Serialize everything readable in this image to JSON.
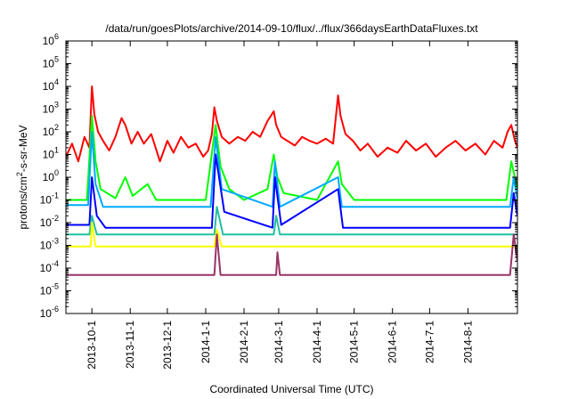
{
  "chart_data": {
    "type": "line",
    "title": "/data/run/goesPlots/archive/2014-09-10/flux/../flux/366daysEarthDataFluxes.txt",
    "xlabel": "Coordinated Universal Time (UTC)",
    "ylabel": "protons/cm2-s-sr-MeV",
    "ylabel_parts": {
      "base": "protons/cm",
      "sup": "2",
      "rest": "-s-sr-MeV"
    },
    "yscale": "log",
    "ylim": [
      1e-06,
      1000000.0
    ],
    "xlim": [
      "2013-09-10",
      "2014-09-10"
    ],
    "y_ticks": [
      {
        "exp": -6,
        "label_base": "10",
        "label_sup": "-6"
      },
      {
        "exp": -5,
        "label_base": "10",
        "label_sup": "-5"
      },
      {
        "exp": -4,
        "label_base": "10",
        "label_sup": "-4"
      },
      {
        "exp": -3,
        "label_base": "10",
        "label_sup": "-3"
      },
      {
        "exp": -2,
        "label_base": "10",
        "label_sup": "-2"
      },
      {
        "exp": -1,
        "label_base": "10",
        "label_sup": "-1"
      },
      {
        "exp": 0,
        "label_base": "10",
        "label_sup": "0"
      },
      {
        "exp": 1,
        "label_base": "10",
        "label_sup": "1"
      },
      {
        "exp": 2,
        "label_base": "10",
        "label_sup": "2"
      },
      {
        "exp": 3,
        "label_base": "10",
        "label_sup": "3"
      },
      {
        "exp": 4,
        "label_base": "10",
        "label_sup": "4"
      },
      {
        "exp": 5,
        "label_base": "10",
        "label_sup": "5"
      },
      {
        "exp": 6,
        "label_base": "10",
        "label_sup": "6"
      }
    ],
    "x_ticks": [
      {
        "date": "2013-10-01",
        "label": "2013-10-1"
      },
      {
        "date": "2013-11-01",
        "label": "2013-11-1"
      },
      {
        "date": "2013-12-01",
        "label": "2013-12-1"
      },
      {
        "date": "2014-01-01",
        "label": "2014-1-1"
      },
      {
        "date": "2014-02-01",
        "label": "2014-2-1"
      },
      {
        "date": "2014-03-01",
        "label": "2014-3-1"
      },
      {
        "date": "2014-04-01",
        "label": "2014-4-1"
      },
      {
        "date": "2014-05-01",
        "label": "2014-5-1"
      },
      {
        "date": "2014-06-01",
        "label": "2014-6-1"
      },
      {
        "date": "2014-07-01",
        "label": "2014-7-1"
      },
      {
        "date": "2014-08-01",
        "label": "2014-8-1"
      }
    ],
    "grid": false,
    "legend": "none",
    "series": [
      {
        "color": "#ff0000",
        "points": [
          [
            "2013-09-10",
            8
          ],
          [
            "2013-09-15",
            30
          ],
          [
            "2013-09-20",
            5
          ],
          [
            "2013-09-25",
            60
          ],
          [
            "2013-09-29",
            20
          ],
          [
            "2013-10-01",
            10000
          ],
          [
            "2013-10-03",
            600
          ],
          [
            "2013-10-06",
            100
          ],
          [
            "2013-10-10",
            40
          ],
          [
            "2013-10-15",
            15
          ],
          [
            "2013-10-20",
            60
          ],
          [
            "2013-10-25",
            400
          ],
          [
            "2013-10-28",
            200
          ],
          [
            "2013-11-02",
            30
          ],
          [
            "2013-11-07",
            100
          ],
          [
            "2013-11-12",
            30
          ],
          [
            "2013-11-18",
            80
          ],
          [
            "2013-11-25",
            5
          ],
          [
            "2013-12-01",
            40
          ],
          [
            "2013-12-06",
            12
          ],
          [
            "2013-12-12",
            60
          ],
          [
            "2013-12-18",
            20
          ],
          [
            "2013-12-24",
            30
          ],
          [
            "2013-12-30",
            8
          ],
          [
            "2014-01-03",
            15
          ],
          [
            "2014-01-06",
            80
          ],
          [
            "2014-01-08",
            1200
          ],
          [
            "2014-01-10",
            300
          ],
          [
            "2014-01-14",
            60
          ],
          [
            "2014-01-20",
            30
          ],
          [
            "2014-01-27",
            60
          ],
          [
            "2014-02-02",
            40
          ],
          [
            "2014-02-08",
            100
          ],
          [
            "2014-02-14",
            60
          ],
          [
            "2014-02-20",
            300
          ],
          [
            "2014-02-25",
            800
          ],
          [
            "2014-02-27",
            200
          ],
          [
            "2014-03-03",
            60
          ],
          [
            "2014-03-08",
            40
          ],
          [
            "2014-03-14",
            25
          ],
          [
            "2014-03-20",
            60
          ],
          [
            "2014-03-26",
            40
          ],
          [
            "2014-04-01",
            30
          ],
          [
            "2014-04-08",
            50
          ],
          [
            "2014-04-14",
            30
          ],
          [
            "2014-04-18",
            4000
          ],
          [
            "2014-04-20",
            500
          ],
          [
            "2014-04-24",
            80
          ],
          [
            "2014-04-30",
            40
          ],
          [
            "2014-05-06",
            15
          ],
          [
            "2014-05-12",
            30
          ],
          [
            "2014-05-20",
            8
          ],
          [
            "2014-05-28",
            20
          ],
          [
            "2014-06-05",
            12
          ],
          [
            "2014-06-12",
            40
          ],
          [
            "2014-06-20",
            15
          ],
          [
            "2014-06-28",
            30
          ],
          [
            "2014-07-06",
            8
          ],
          [
            "2014-07-14",
            20
          ],
          [
            "2014-07-22",
            40
          ],
          [
            "2014-07-30",
            15
          ],
          [
            "2014-08-07",
            30
          ],
          [
            "2014-08-15",
            10
          ],
          [
            "2014-08-22",
            40
          ],
          [
            "2014-08-29",
            20
          ],
          [
            "2014-09-02",
            100
          ],
          [
            "2014-09-05",
            200
          ],
          [
            "2014-09-08",
            40
          ],
          [
            "2014-09-10",
            20
          ]
        ]
      },
      {
        "color": "#00ff00",
        "points": [
          [
            "2013-09-10",
            0.1
          ],
          [
            "2013-09-27",
            0.1
          ],
          [
            "2013-10-01",
            500
          ],
          [
            "2013-10-04",
            5
          ],
          [
            "2013-10-08",
            0.3
          ],
          [
            "2013-10-20",
            0.12
          ],
          [
            "2013-10-28",
            1
          ],
          [
            "2013-11-03",
            0.15
          ],
          [
            "2013-11-15",
            0.5
          ],
          [
            "2013-11-22",
            0.1
          ],
          [
            "2014-01-01",
            0.1
          ],
          [
            "2014-01-07",
            30
          ],
          [
            "2014-01-09",
            200
          ],
          [
            "2014-01-13",
            3
          ],
          [
            "2014-01-20",
            0.3
          ],
          [
            "2014-02-01",
            0.1
          ],
          [
            "2014-02-20",
            0.3
          ],
          [
            "2014-02-25",
            10
          ],
          [
            "2014-02-28",
            1
          ],
          [
            "2014-03-05",
            0.2
          ],
          [
            "2014-04-01",
            0.1
          ],
          [
            "2014-04-18",
            5
          ],
          [
            "2014-04-21",
            0.5
          ],
          [
            "2014-05-01",
            0.1
          ],
          [
            "2014-09-01",
            0.1
          ],
          [
            "2014-09-05",
            5
          ],
          [
            "2014-09-10",
            0.3
          ]
        ]
      },
      {
        "color": "#00aaff",
        "points": [
          [
            "2013-09-10",
            0.06
          ],
          [
            "2013-09-28",
            0.06
          ],
          [
            "2013-10-01",
            100
          ],
          [
            "2013-10-04",
            0.5
          ],
          [
            "2013-10-10",
            0.05
          ],
          [
            "2014-01-05",
            0.05
          ],
          [
            "2014-01-09",
            60
          ],
          [
            "2014-01-14",
            0.3
          ],
          [
            "2014-02-24",
            0.05
          ],
          [
            "2014-02-26",
            5
          ],
          [
            "2014-03-02",
            0.05
          ],
          [
            "2014-04-18",
            1
          ],
          [
            "2014-04-21",
            0.05
          ],
          [
            "2014-09-04",
            0.05
          ],
          [
            "2014-09-07",
            1
          ],
          [
            "2014-09-10",
            0.1
          ]
        ]
      },
      {
        "color": "#0000ff",
        "points": [
          [
            "2013-09-10",
            0.008
          ],
          [
            "2013-09-29",
            0.008
          ],
          [
            "2013-10-01",
            1
          ],
          [
            "2013-10-05",
            0.02
          ],
          [
            "2013-10-12",
            0.006
          ],
          [
            "2014-01-06",
            0.006
          ],
          [
            "2014-01-09",
            10
          ],
          [
            "2014-01-16",
            0.03
          ],
          [
            "2014-02-24",
            0.006
          ],
          [
            "2014-02-26",
            1
          ],
          [
            "2014-03-03",
            0.008
          ],
          [
            "2014-04-18",
            0.3
          ],
          [
            "2014-04-22",
            0.006
          ],
          [
            "2014-09-04",
            0.006
          ],
          [
            "2014-09-07",
            0.2
          ],
          [
            "2014-09-10",
            0.02
          ]
        ]
      },
      {
        "color": "#20c0a0",
        "points": [
          [
            "2013-09-10",
            0.003
          ],
          [
            "2013-09-29",
            0.003
          ],
          [
            "2013-10-01",
            0.02
          ],
          [
            "2013-10-05",
            0.003
          ],
          [
            "2014-01-08",
            0.003
          ],
          [
            "2014-01-10",
            0.05
          ],
          [
            "2014-01-15",
            0.003
          ],
          [
            "2014-02-25",
            0.003
          ],
          [
            "2014-02-27",
            0.02
          ],
          [
            "2014-03-02",
            0.003
          ],
          [
            "2014-09-10",
            0.003
          ]
        ]
      },
      {
        "color": "#ffff00",
        "points": [
          [
            "2013-09-10",
            0.0009
          ],
          [
            "2013-09-30",
            0.0009
          ],
          [
            "2013-10-01",
            0.01
          ],
          [
            "2013-10-04",
            0.0009
          ],
          [
            "2014-01-08",
            0.0009
          ],
          [
            "2014-01-10",
            0.005
          ],
          [
            "2014-01-14",
            0.0009
          ],
          [
            "2014-09-10",
            0.0009
          ]
        ]
      },
      {
        "color": "#993366",
        "points": [
          [
            "2013-09-10",
            5e-05
          ],
          [
            "2013-10-01",
            5e-05
          ],
          [
            "2014-01-08",
            5e-05
          ],
          [
            "2014-01-10",
            0.003
          ],
          [
            "2014-01-13",
            5e-05
          ],
          [
            "2014-02-27",
            5e-05
          ],
          [
            "2014-02-28",
            0.0005
          ],
          [
            "2014-03-02",
            5e-05
          ],
          [
            "2014-09-04",
            5e-05
          ],
          [
            "2014-09-07",
            0.003
          ],
          [
            "2014-09-10",
            0.0002
          ]
        ]
      }
    ]
  }
}
